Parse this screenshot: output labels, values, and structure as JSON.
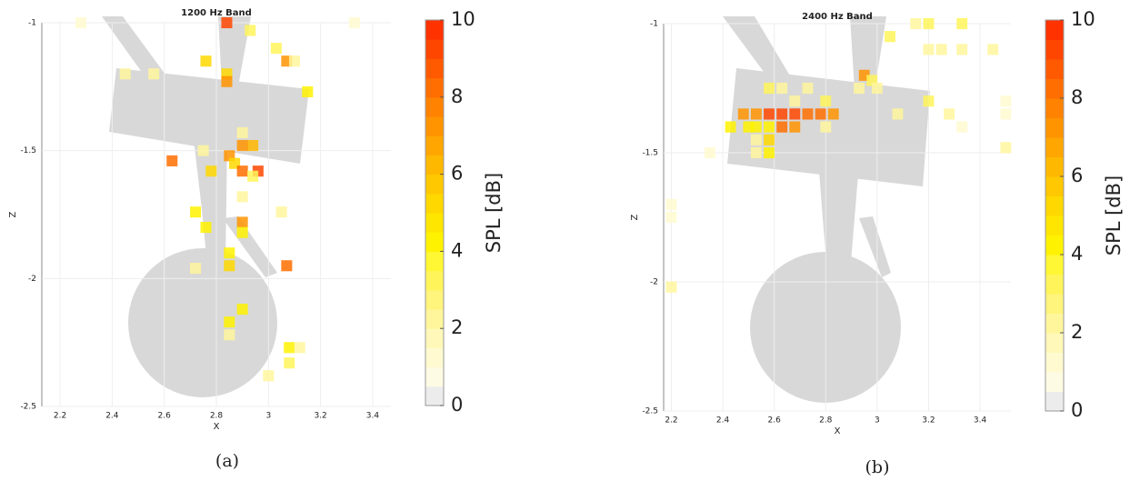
{
  "chart_data": [
    {
      "type": "heatmap",
      "title": "1200 Hz Band",
      "x_label": "X",
      "y_label": "Z",
      "caption": "(a)",
      "xlim": [
        2.13,
        3.47
      ],
      "ylim": [
        -2.5,
        -1
      ],
      "xticks": [
        2.2,
        2.4,
        2.6,
        2.8,
        3,
        3.2,
        3.4
      ],
      "yticks": [
        -2.5,
        -2,
        -1.5,
        -1
      ],
      "grid": true,
      "x": [
        2.84,
        2.28,
        3.33,
        2.93,
        3.03,
        2.76,
        2.84,
        2.84,
        3.07,
        3.1,
        2.45,
        2.56,
        3.15,
        2.9,
        2.94,
        2.9,
        2.85,
        2.87,
        2.63,
        2.75,
        2.78,
        2.9,
        2.96,
        2.94,
        2.9,
        2.72,
        2.76,
        2.9,
        2.9,
        3.05,
        2.85,
        2.85,
        2.72,
        3.07,
        2.9,
        2.85,
        2.85,
        3.08,
        3.12,
        3.08,
        3.0
      ],
      "y": [
        -1.0,
        -1.0,
        -1.0,
        -1.03,
        -1.1,
        -1.15,
        -1.2,
        -1.23,
        -1.15,
        -1.15,
        -1.2,
        -1.2,
        -1.27,
        -1.43,
        -1.48,
        -1.48,
        -1.52,
        -1.55,
        -1.54,
        -1.5,
        -1.58,
        -1.58,
        -1.58,
        -1.6,
        -1.68,
        -1.74,
        -1.8,
        -1.78,
        -1.82,
        -1.74,
        -1.9,
        -1.95,
        -1.96,
        -1.95,
        -2.12,
        -2.17,
        -2.22,
        -2.27,
        -2.27,
        -2.33,
        -2.38
      ],
      "values": [
        9,
        1,
        1,
        3,
        3,
        5,
        5,
        7,
        7,
        2,
        2,
        2,
        4,
        2,
        6,
        7,
        7,
        5,
        8,
        2,
        5,
        8,
        9,
        3,
        2,
        4,
        4,
        7,
        4,
        2,
        4,
        5,
        2,
        8,
        4,
        4,
        2,
        4,
        2,
        3,
        2
      ],
      "clim": [
        0,
        10
      ],
      "cticks": [
        0,
        2,
        4,
        6,
        8,
        10
      ],
      "colorbar_label": "SPL [dB]",
      "colormap": [
        "#ececec",
        "#fdfbe3",
        "#fffad0",
        "#fff8b8",
        "#fff69c",
        "#fff47c",
        "#fff55a",
        "#fff734",
        "#fff200",
        "#ffe600",
        "#ffd800",
        "#ffc800",
        "#ffb800",
        "#ffa600",
        "#ff9400",
        "#ff8200",
        "#ff6e00",
        "#ff5a00",
        "#ff4600",
        "#ff3200"
      ]
    },
    {
      "type": "heatmap",
      "title": "2400 Hz Band",
      "x_label": "X",
      "y_label": "Z",
      "caption": "(b)",
      "xlim": [
        2.17,
        3.52
      ],
      "ylim": [
        -2.5,
        -1
      ],
      "xticks": [
        2.2,
        2.4,
        2.6,
        2.8,
        3,
        3.2,
        3.4
      ],
      "yticks": [
        -2.5,
        -2,
        -1.5,
        -1
      ],
      "grid": true,
      "x": [
        3.2,
        3.33,
        3.15,
        3.05,
        3.2,
        3.25,
        3.33,
        3.45,
        2.95,
        2.58,
        2.63,
        2.73,
        2.93,
        2.98,
        3.0,
        2.68,
        2.8,
        2.48,
        2.53,
        2.58,
        2.63,
        2.68,
        2.73,
        2.78,
        2.83,
        2.43,
        2.5,
        2.53,
        2.58,
        2.63,
        2.68,
        2.8,
        2.58,
        2.53,
        2.58,
        2.53,
        2.35,
        3.08,
        3.2,
        3.28,
        3.33,
        3.5,
        3.5,
        3.5,
        2.2,
        2.2,
        2.2
      ],
      "y": [
        -1.0,
        -1.0,
        -1.0,
        -1.05,
        -1.1,
        -1.1,
        -1.1,
        -1.1,
        -1.2,
        -1.25,
        -1.25,
        -1.25,
        -1.25,
        -1.22,
        -1.25,
        -1.3,
        -1.3,
        -1.35,
        -1.35,
        -1.35,
        -1.35,
        -1.35,
        -1.35,
        -1.35,
        -1.35,
        -1.4,
        -1.4,
        -1.4,
        -1.4,
        -1.4,
        -1.4,
        -1.4,
        -1.45,
        -1.45,
        -1.5,
        -1.5,
        -1.5,
        -1.35,
        -1.3,
        -1.35,
        -1.4,
        -1.3,
        -1.35,
        -1.48,
        -1.7,
        -1.75,
        -2.02
      ],
      "values": [
        3,
        3,
        2,
        3,
        2,
        2,
        2,
        2,
        7,
        3,
        2,
        2,
        2,
        3,
        2,
        2,
        3,
        7,
        7,
        9,
        9,
        9,
        8,
        8,
        7,
        4,
        4,
        4,
        4,
        8,
        7,
        2,
        5,
        2,
        4,
        2,
        1,
        2,
        3,
        2,
        1,
        1,
        1,
        2,
        1,
        1,
        2
      ],
      "clim": [
        0,
        10
      ],
      "cticks": [
        0,
        2,
        4,
        6,
        8,
        10
      ],
      "colorbar_label": "SPL [dB]",
      "colormap": [
        "#ececec",
        "#fdfbe3",
        "#fffad0",
        "#fff8b8",
        "#fff69c",
        "#fff47c",
        "#fff55a",
        "#fff734",
        "#fff200",
        "#ffe600",
        "#ffd800",
        "#ffc800",
        "#ffb800",
        "#ffa600",
        "#ff9400",
        "#ff8200",
        "#ff6e00",
        "#ff5a00",
        "#ff4600",
        "#ff3200"
      ]
    }
  ]
}
